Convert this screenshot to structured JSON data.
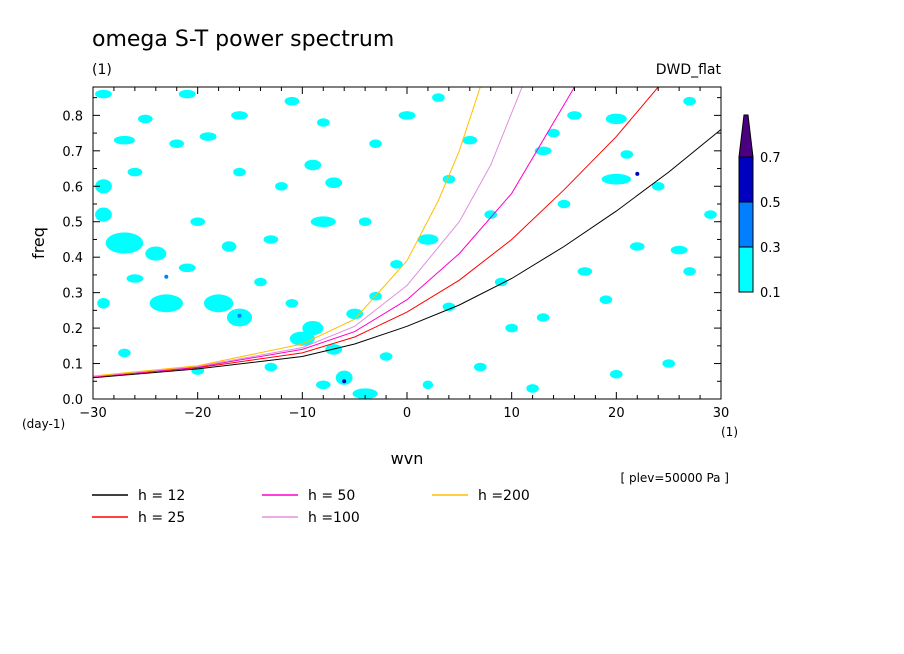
{
  "title": "omega S-T power spectrum",
  "subtitle": "(1)",
  "model_label": "DWD_flat",
  "plev_note": "[ plev=50000 Pa ]",
  "chart_data": {
    "type": "contour",
    "title": "omega S-T power spectrum",
    "xlabel": "wvn",
    "ylabel": "freq",
    "x_unit": "(1)",
    "y_unit": "(day-1)",
    "xlim": [
      -30,
      30
    ],
    "ylim": [
      0.0,
      0.88
    ],
    "x_ticks": [
      -30,
      -20,
      -10,
      0,
      10,
      20,
      30
    ],
    "y_ticks": [
      0.0,
      0.1,
      0.2,
      0.3,
      0.4,
      0.5,
      0.6,
      0.7,
      0.8
    ],
    "contour_levels": [
      0.1,
      0.3,
      0.5,
      0.7
    ],
    "contour_colors": [
      "#00ffff",
      "#0080ff",
      "#0000c0",
      "#4b0082"
    ],
    "curves": [
      {
        "name": "h = 12",
        "color": "#000000",
        "x": [
          -30,
          -20,
          -10,
          -5,
          0,
          5,
          10,
          15,
          20,
          25,
          30
        ],
        "y": [
          0.06,
          0.085,
          0.12,
          0.155,
          0.205,
          0.265,
          0.34,
          0.43,
          0.53,
          0.64,
          0.76
        ]
      },
      {
        "name": "h = 25",
        "color": "#ff0000",
        "x": [
          -30,
          -20,
          -10,
          -5,
          0,
          5,
          10,
          15,
          20,
          24
        ],
        "y": [
          0.062,
          0.088,
          0.13,
          0.175,
          0.245,
          0.335,
          0.45,
          0.59,
          0.74,
          0.88
        ]
      },
      {
        "name": "h = 50",
        "color": "#ff00cc",
        "x": [
          -30,
          -20,
          -10,
          -5,
          0,
          5,
          10,
          16
        ],
        "y": [
          0.063,
          0.09,
          0.14,
          0.19,
          0.28,
          0.41,
          0.58,
          0.88
        ]
      },
      {
        "name": "h =100",
        "color": "#e090e0",
        "x": [
          -30,
          -20,
          -10,
          -5,
          0,
          5,
          8,
          11
        ],
        "y": [
          0.064,
          0.092,
          0.145,
          0.205,
          0.32,
          0.5,
          0.66,
          0.88
        ]
      },
      {
        "name": "h =200",
        "color": "#ffbf00",
        "x": [
          -30,
          -20,
          -10,
          -5,
          0,
          3,
          5,
          7
        ],
        "y": [
          0.065,
          0.094,
          0.155,
          0.225,
          0.39,
          0.56,
          0.7,
          0.88
        ]
      }
    ],
    "contour_patches": [
      [
        -29,
        0.86,
        0.8,
        0.012
      ],
      [
        -25,
        0.79,
        0.7,
        0.012
      ],
      [
        -21,
        0.86,
        0.8,
        0.012
      ],
      [
        -16,
        0.8,
        0.8,
        0.012
      ],
      [
        -11,
        0.84,
        0.7,
        0.012
      ],
      [
        -8,
        0.78,
        0.6,
        0.012
      ],
      [
        0,
        0.8,
        0.8,
        0.012
      ],
      [
        3,
        0.85,
        0.6,
        0.012
      ],
      [
        14,
        0.75,
        0.6,
        0.012
      ],
      [
        16,
        0.8,
        0.7,
        0.012
      ],
      [
        20,
        0.79,
        1.0,
        0.015
      ],
      [
        27,
        0.84,
        0.6,
        0.012
      ],
      [
        -27,
        0.73,
        1.0,
        0.012
      ],
      [
        -22,
        0.72,
        0.7,
        0.012
      ],
      [
        -19,
        0.74,
        0.8,
        0.012
      ],
      [
        -3,
        0.72,
        0.6,
        0.012
      ],
      [
        6,
        0.73,
        0.7,
        0.012
      ],
      [
        13,
        0.7,
        0.8,
        0.012
      ],
      [
        21,
        0.69,
        0.6,
        0.012
      ],
      [
        -29,
        0.6,
        0.8,
        0.02
      ],
      [
        -26,
        0.64,
        0.7,
        0.012
      ],
      [
        -16,
        0.64,
        0.6,
        0.012
      ],
      [
        -9,
        0.66,
        0.8,
        0.015
      ],
      [
        -7,
        0.61,
        0.8,
        0.015
      ],
      [
        -12,
        0.6,
        0.6,
        0.012
      ],
      [
        4,
        0.62,
        0.6,
        0.012
      ],
      [
        20,
        0.62,
        1.4,
        0.015
      ],
      [
        -29,
        0.52,
        0.8,
        0.02
      ],
      [
        -27,
        0.44,
        1.8,
        0.03
      ],
      [
        -24,
        0.41,
        1.0,
        0.02
      ],
      [
        -20,
        0.5,
        0.7,
        0.012
      ],
      [
        -13,
        0.45,
        0.7,
        0.012
      ],
      [
        -8,
        0.5,
        1.2,
        0.015
      ],
      [
        -4,
        0.5,
        0.6,
        0.012
      ],
      [
        2,
        0.45,
        1.0,
        0.015
      ],
      [
        -17,
        0.43,
        0.7,
        0.015
      ],
      [
        -21,
        0.37,
        0.8,
        0.012
      ],
      [
        -14,
        0.33,
        0.6,
        0.012
      ],
      [
        -26,
        0.34,
        0.8,
        0.012
      ],
      [
        -23,
        0.27,
        1.6,
        0.025
      ],
      [
        -18,
        0.27,
        1.4,
        0.025
      ],
      [
        -16,
        0.23,
        1.2,
        0.025
      ],
      [
        -11,
        0.27,
        0.6,
        0.012
      ],
      [
        -9,
        0.2,
        1.0,
        0.02
      ],
      [
        -5,
        0.24,
        0.8,
        0.015
      ],
      [
        -3,
        0.29,
        0.6,
        0.012
      ],
      [
        -10,
        0.17,
        1.2,
        0.02
      ],
      [
        -7,
        0.14,
        0.8,
        0.015
      ],
      [
        -6,
        0.06,
        0.8,
        0.02
      ],
      [
        -2,
        0.12,
        0.6,
        0.012
      ],
      [
        -4,
        0.015,
        1.2,
        0.015
      ],
      [
        -8,
        0.04,
        0.7,
        0.012
      ],
      [
        -13,
        0.09,
        0.6,
        0.012
      ],
      [
        -20,
        0.08,
        0.6,
        0.012
      ],
      [
        4,
        0.26,
        0.6,
        0.012
      ],
      [
        9,
        0.33,
        0.6,
        0.012
      ],
      [
        17,
        0.36,
        0.7,
        0.012
      ],
      [
        13,
        0.23,
        0.6,
        0.012
      ],
      [
        22,
        0.43,
        0.7,
        0.012
      ],
      [
        26,
        0.42,
        0.8,
        0.012
      ],
      [
        29,
        0.52,
        0.6,
        0.012
      ],
      [
        27,
        0.36,
        0.6,
        0.012
      ],
      [
        19,
        0.28,
        0.6,
        0.012
      ],
      [
        25,
        0.1,
        0.6,
        0.012
      ],
      [
        12,
        0.03,
        0.6,
        0.012
      ],
      [
        20,
        0.07,
        0.6,
        0.012
      ],
      [
        2,
        0.04,
        0.5,
        0.012
      ],
      [
        7,
        0.09,
        0.6,
        0.012
      ],
      [
        -27,
        0.13,
        0.6,
        0.012
      ],
      [
        -29,
        0.27,
        0.6,
        0.015
      ],
      [
        24,
        0.6,
        0.6,
        0.012
      ],
      [
        15,
        0.55,
        0.6,
        0.012
      ],
      [
        10,
        0.2,
        0.6,
        0.012
      ],
      [
        -1,
        0.38,
        0.6,
        0.012
      ],
      [
        8,
        0.52,
        0.6,
        0.012
      ]
    ],
    "contour_spots": [
      [
        -23,
        0.345,
        0.3
      ],
      [
        -16,
        0.235,
        0.3
      ],
      [
        -6,
        0.05,
        0.5
      ],
      [
        22,
        0.635,
        0.5
      ]
    ]
  }
}
